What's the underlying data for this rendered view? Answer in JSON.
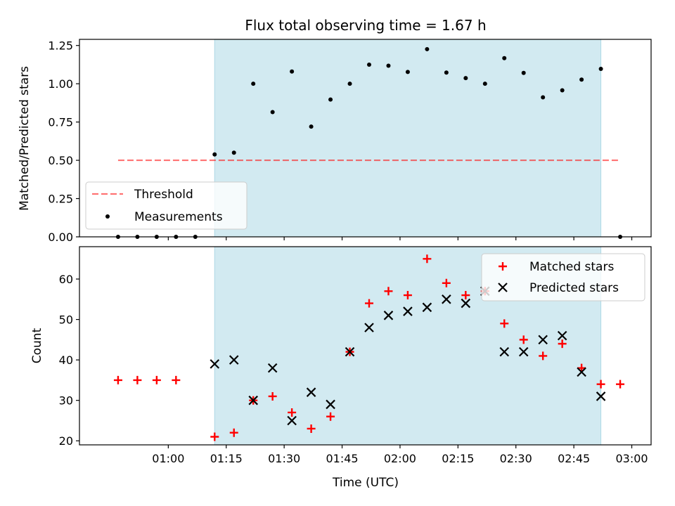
{
  "chart_data": [
    {
      "type": "scatter",
      "title": "Flux total observing time = 1.67 h",
      "xlabel": "",
      "ylabel": "Matched/Predicted stars",
      "ylim": [
        0,
        1.29
      ],
      "yticks": [
        "0.00",
        "0.25",
        "0.50",
        "0.75",
        "1.00",
        "1.25"
      ],
      "xlim": [
        "00:37",
        "03:05"
      ],
      "x_tick_labels_shown": false,
      "grid": false,
      "legend_position": "lower-left",
      "observing_window": {
        "start": "01:12",
        "end": "02:52",
        "color": "#add8e6"
      },
      "threshold": {
        "name": "Threshold",
        "value": 0.5,
        "x_start": "00:47",
        "x_end": "02:57",
        "color": "#ff0000",
        "style": "dashed"
      },
      "series": [
        {
          "name": "Measurements",
          "color": "#000000",
          "marker": "dot",
          "x": [
            "00:47",
            "00:52",
            "00:57",
            "01:02",
            "01:07",
            "01:12",
            "01:17",
            "01:22",
            "01:27",
            "01:32",
            "01:37",
            "01:42",
            "01:47",
            "01:52",
            "01:57",
            "02:02",
            "02:07",
            "02:12",
            "02:17",
            "02:22",
            "02:27",
            "02:32",
            "02:37",
            "02:42",
            "02:47",
            "02:52",
            "02:57"
          ],
          "y": [
            0,
            0,
            0,
            0,
            0,
            0.538,
            0.55,
            1.0,
            0.815,
            1.08,
            0.72,
            0.897,
            1.0,
            1.125,
            1.118,
            1.077,
            1.226,
            1.073,
            1.037,
            1.0,
            1.167,
            1.071,
            0.911,
            0.957,
            1.027,
            1.097,
            0
          ]
        }
      ]
    },
    {
      "type": "scatter",
      "title": "",
      "xlabel": "Time (UTC)",
      "ylabel": "Count",
      "ylim": [
        19,
        68
      ],
      "yticks": [
        "20",
        "30",
        "40",
        "50",
        "60"
      ],
      "xlim": [
        "00:37",
        "03:05"
      ],
      "xticks": [
        "01:00",
        "01:15",
        "01:30",
        "01:45",
        "02:00",
        "02:15",
        "02:30",
        "02:45",
        "03:00"
      ],
      "grid": false,
      "legend_position": "upper-right",
      "observing_window": {
        "start": "01:12",
        "end": "02:52",
        "color": "#add8e6"
      },
      "series": [
        {
          "name": "Matched stars",
          "color": "#ff0000",
          "marker": "plus",
          "x": [
            "00:47",
            "00:52",
            "00:57",
            "01:02",
            "01:12",
            "01:17",
            "01:22",
            "01:27",
            "01:32",
            "01:37",
            "01:42",
            "01:47",
            "01:52",
            "01:57",
            "02:02",
            "02:07",
            "02:12",
            "02:17",
            "02:22",
            "02:27",
            "02:32",
            "02:37",
            "02:42",
            "02:47",
            "02:52",
            "02:57"
          ],
          "y": [
            35,
            35,
            35,
            35,
            21,
            22,
            30,
            31,
            27,
            23,
            26,
            42,
            54,
            57,
            56,
            65,
            59,
            56,
            57,
            49,
            45,
            41,
            44,
            38,
            34,
            34
          ]
        },
        {
          "name": "Predicted stars",
          "color": "#000000",
          "marker": "x",
          "x": [
            "01:12",
            "01:17",
            "01:22",
            "01:27",
            "01:32",
            "01:37",
            "01:42",
            "01:47",
            "01:52",
            "01:57",
            "02:02",
            "02:07",
            "02:12",
            "02:17",
            "02:22",
            "02:27",
            "02:32",
            "02:37",
            "02:42",
            "02:47",
            "02:52"
          ],
          "y": [
            39,
            40,
            30,
            38,
            25,
            32,
            29,
            42,
            48,
            51,
            52,
            53,
            55,
            54,
            57,
            42,
            42,
            45,
            46,
            37,
            31
          ]
        }
      ]
    }
  ]
}
